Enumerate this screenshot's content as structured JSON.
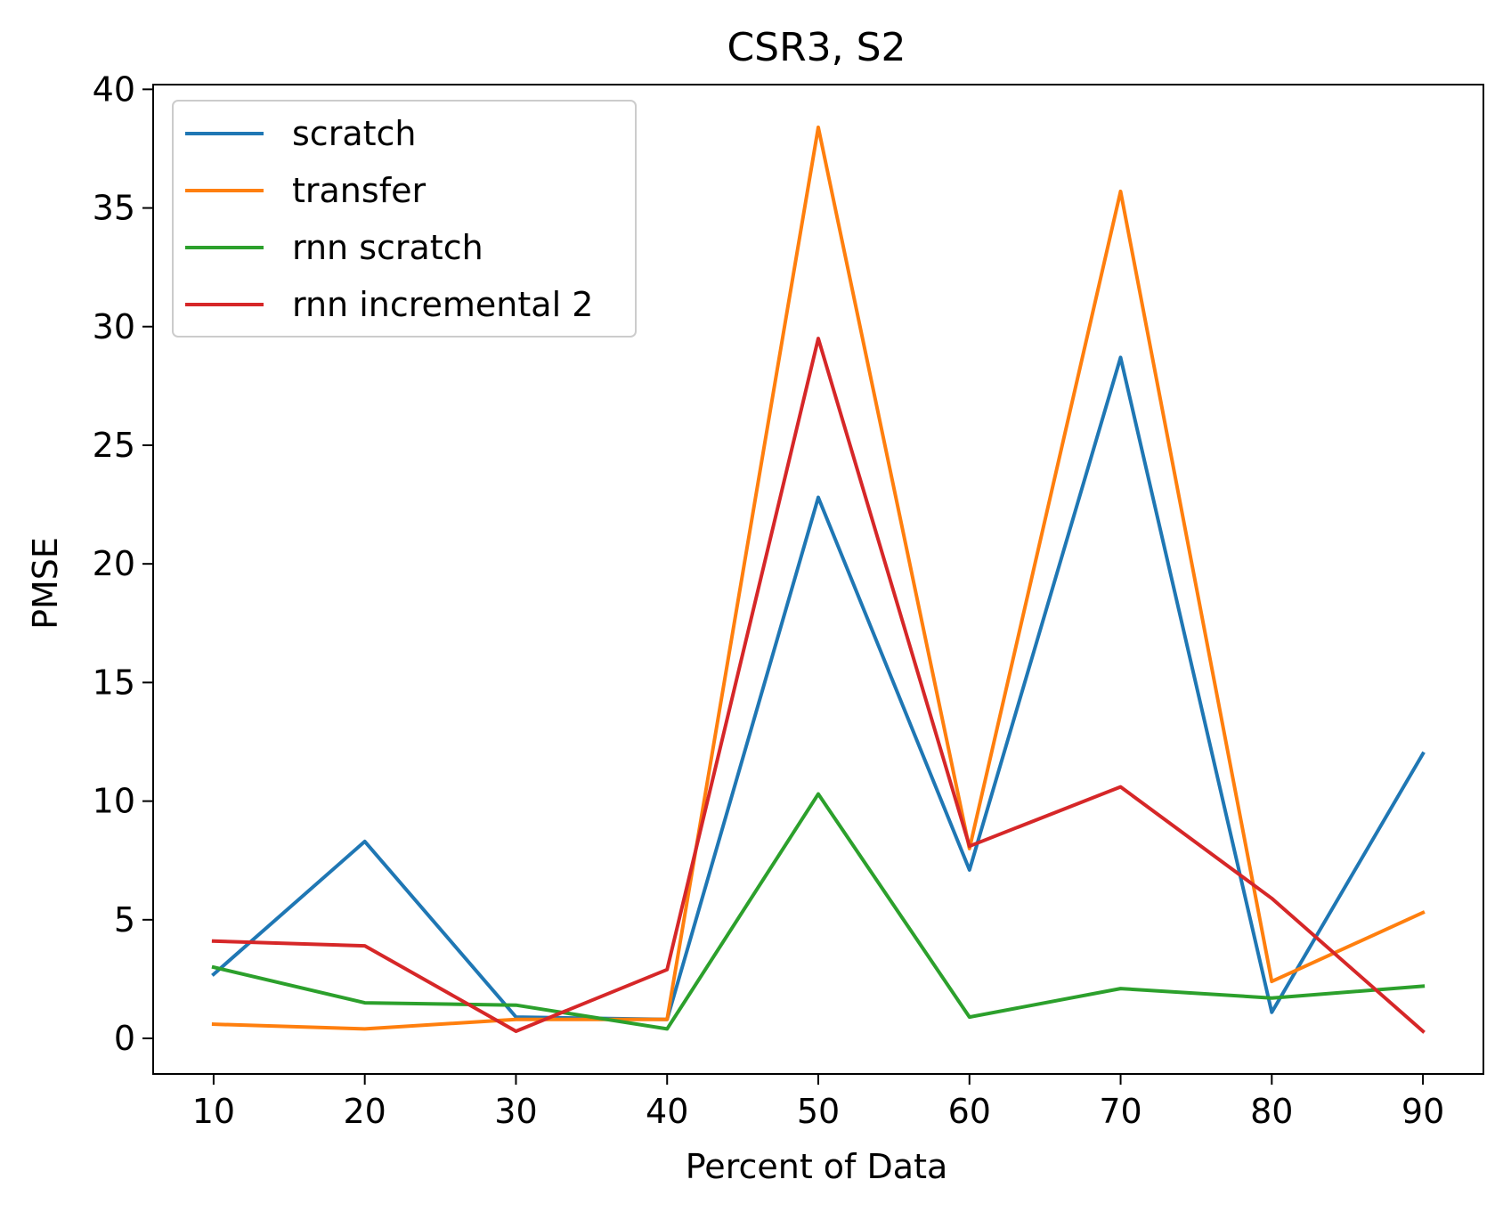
{
  "chart_data": {
    "type": "line",
    "title": "CSR3, S2",
    "xlabel": "Percent of Data",
    "ylabel": "PMSE",
    "x": [
      10,
      20,
      30,
      40,
      50,
      60,
      70,
      80,
      90
    ],
    "xticks": [
      10,
      20,
      30,
      40,
      50,
      60,
      70,
      80,
      90
    ],
    "yticks": [
      0,
      5,
      10,
      15,
      20,
      25,
      30,
      35,
      40
    ],
    "xlim": [
      6,
      94
    ],
    "ylim": [
      -1.5,
      40.2
    ],
    "grid": false,
    "legend_position": "upper-left",
    "series": [
      {
        "name": "scratch",
        "color": "#1f77b4",
        "values": [
          2.7,
          8.3,
          0.9,
          0.8,
          22.8,
          7.1,
          28.7,
          1.1,
          12.0
        ]
      },
      {
        "name": "transfer",
        "color": "#ff7f0e",
        "values": [
          0.6,
          0.4,
          0.8,
          0.8,
          38.4,
          8.0,
          35.7,
          2.4,
          5.3
        ]
      },
      {
        "name": "rnn scratch",
        "color": "#2ca02c",
        "values": [
          3.0,
          1.5,
          1.4,
          0.4,
          10.3,
          0.9,
          2.1,
          1.7,
          2.2
        ]
      },
      {
        "name": "rnn incremental 2",
        "color": "#d62728",
        "values": [
          4.1,
          3.9,
          0.3,
          2.9,
          29.5,
          8.1,
          10.6,
          5.9,
          0.3
        ]
      }
    ]
  }
}
